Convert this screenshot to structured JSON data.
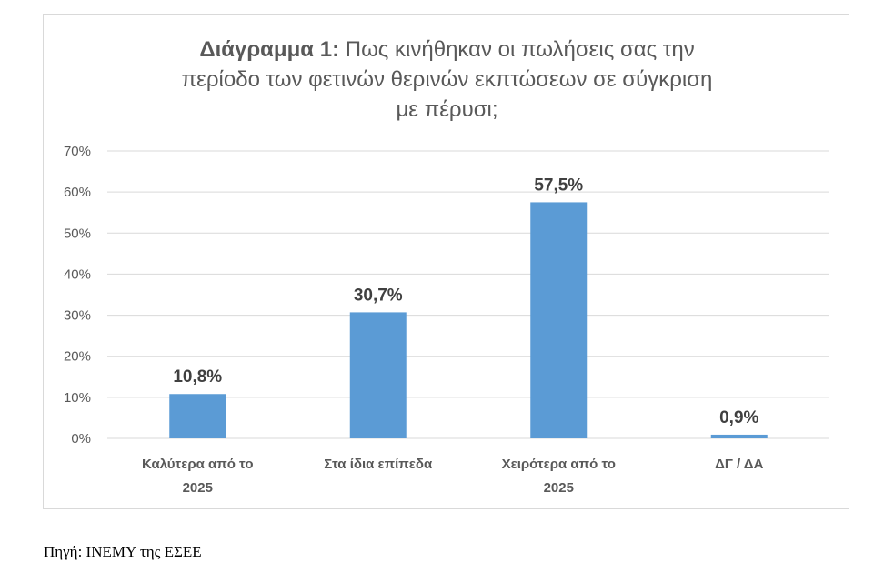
{
  "chart_data": {
    "type": "bar",
    "title_prefix": "Διάγραμμα 1:",
    "title_lines": [
      "Πως κινήθηκαν οι πωλήσεις σας την",
      "περίοδο των φετινών θερινών εκπτώσεων σε σύγκριση",
      "με πέρυσι;"
    ],
    "categories": [
      [
        "Καλύτερα από το",
        "2025"
      ],
      [
        "Στα ίδια επίπεδα"
      ],
      [
        "Χειρότερα από το",
        "2025"
      ],
      [
        "ΔΓ / ΔΑ"
      ]
    ],
    "values": [
      10.8,
      30.7,
      57.5,
      0.9
    ],
    "value_labels": [
      "10,8%",
      "30,7%",
      "57,5%",
      "0,9%"
    ],
    "ylim": [
      0,
      70
    ],
    "yticks": [
      0,
      10,
      20,
      30,
      40,
      50,
      60,
      70
    ],
    "ytick_labels": [
      "0%",
      "10%",
      "20%",
      "30%",
      "40%",
      "50%",
      "60%",
      "70%"
    ],
    "xlabel": "",
    "ylabel": "",
    "grid": true,
    "legend": "none",
    "bar_color": "#5b9bd5",
    "grid_color": "#d9d9d9"
  },
  "source": "Πηγή: ΙΝΕΜΥ της ΕΣΕΕ"
}
